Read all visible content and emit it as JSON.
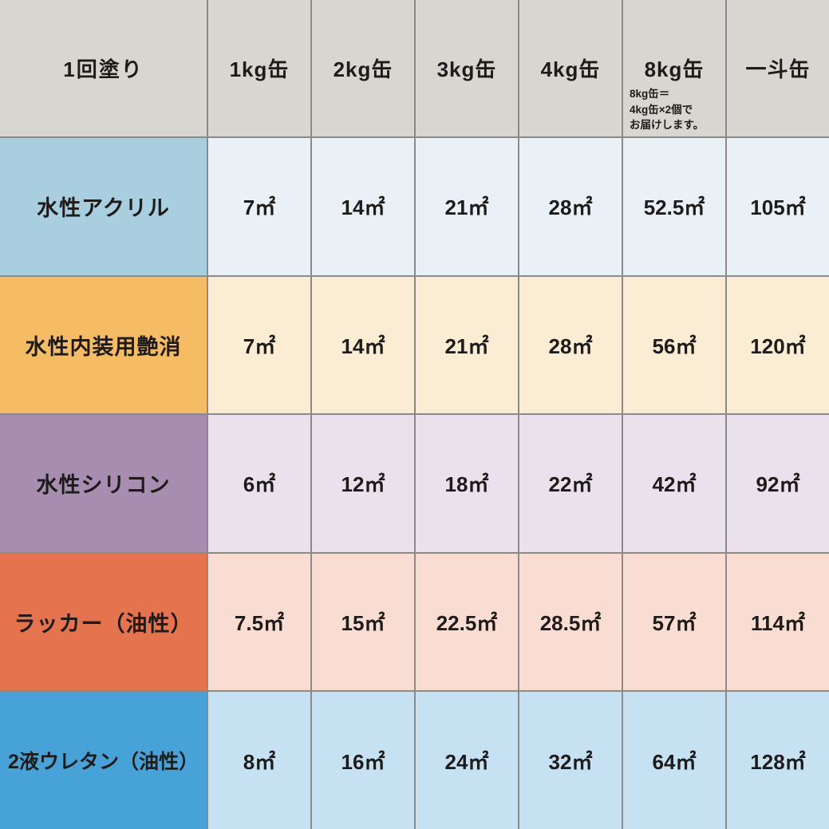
{
  "table": {
    "header": {
      "corner_label": "1回塗り",
      "columns": [
        "1kg缶",
        "2kg缶",
        "3kg缶",
        "4kg缶",
        "8kg缶",
        "一斗缶"
      ],
      "note": "8kg缶＝\n4kg缶×2個で\nお届けします。"
    },
    "rows": [
      {
        "label": "水性アクリル",
        "values": [
          "7㎡",
          "14㎡",
          "21㎡",
          "28㎡",
          "52.5㎡",
          "105㎡"
        ]
      },
      {
        "label": "水性内装用艶消",
        "values": [
          "7㎡",
          "14㎡",
          "21㎡",
          "28㎡",
          "56㎡",
          "120㎡"
        ]
      },
      {
        "label": "水性シリコン",
        "values": [
          "6㎡",
          "12㎡",
          "18㎡",
          "22㎡",
          "42㎡",
          "92㎡"
        ]
      },
      {
        "label": "ラッカー（油性）",
        "values": [
          "7.5㎡",
          "15㎡",
          "22.5㎡",
          "28.5㎡",
          "57㎡",
          "114㎡"
        ]
      },
      {
        "label": "2液ウレタン（油性）",
        "values": [
          "8㎡",
          "16㎡",
          "24㎡",
          "32㎡",
          "64㎡",
          "128㎡"
        ]
      }
    ]
  },
  "colors": {
    "header_bg": "#d8d6d1",
    "grid_line": "#8a8a8a",
    "text": "#1e1c1a",
    "row1_label_bg": "#a9cee0",
    "row1_cell_bg": "#e9f1f6",
    "row2_label_bg": "#f6bc63",
    "row2_cell_bg": "#fbecd4",
    "row3_label_bg": "#a78eb0",
    "row3_cell_bg": "#e9e2ec",
    "row4_label_bg": "#e5734e",
    "row4_cell_bg": "#f9dcd2",
    "row5_label_bg": "#47a2d7",
    "row5_cell_bg": "#c6e2f2"
  },
  "chart_data": {
    "type": "table",
    "title": "1回塗り",
    "unit": "㎡",
    "columns": [
      "1kg缶",
      "2kg缶",
      "3kg缶",
      "4kg缶",
      "8kg缶",
      "一斗缶"
    ],
    "rows": [
      {
        "label": "水性アクリル",
        "values_m2": [
          7,
          14,
          21,
          28,
          52.5,
          105
        ]
      },
      {
        "label": "水性内装用艶消",
        "values_m2": [
          7,
          14,
          21,
          28,
          56,
          120
        ]
      },
      {
        "label": "水性シリコン",
        "values_m2": [
          6,
          12,
          18,
          22,
          42,
          92
        ]
      },
      {
        "label": "ラッカー（油性）",
        "values_m2": [
          7.5,
          15,
          22.5,
          28.5,
          57,
          114
        ]
      },
      {
        "label": "2液ウレタン（油性）",
        "values_m2": [
          8,
          16,
          24,
          32,
          64,
          128
        ]
      }
    ],
    "note": "8kg缶＝4kg缶×2個でお届けします。"
  }
}
